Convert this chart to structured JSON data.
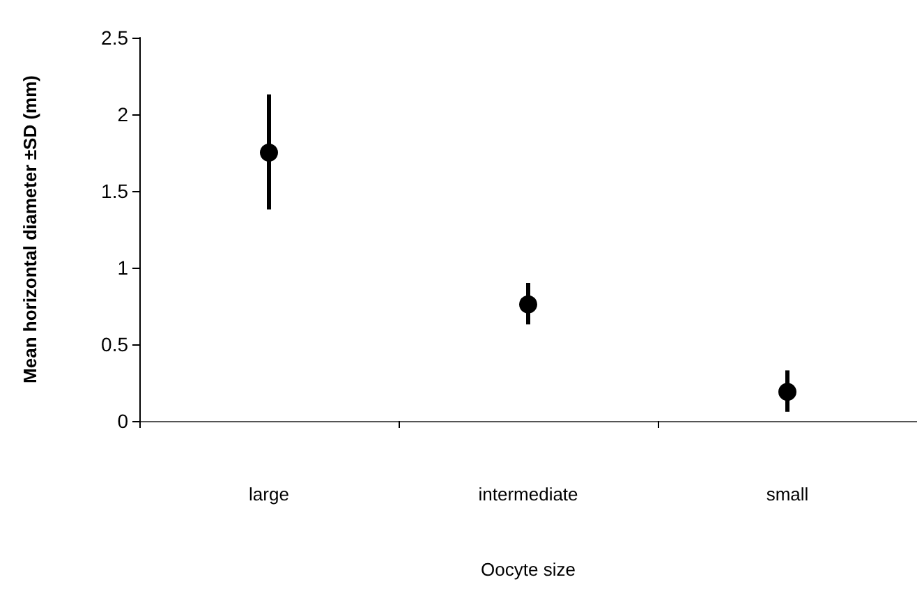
{
  "chart_data": {
    "type": "scatter",
    "xlabel": "Oocyte size",
    "ylabel": "Mean horizontal diameter ±SD (mm)",
    "categories": [
      "large",
      "intermediate",
      "small"
    ],
    "series": [
      {
        "color": "#000000",
        "values": [
          1.75,
          0.76,
          0.19
        ],
        "errors": [
          [
            1.38,
            2.13
          ],
          [
            0.63,
            0.9
          ],
          [
            0.06,
            0.33
          ]
        ]
      }
    ],
    "ylim": [
      0,
      2.5
    ],
    "yticks": [
      0,
      0.5,
      1,
      1.5,
      2,
      2.5
    ],
    "grid": false,
    "marker": "circle"
  }
}
